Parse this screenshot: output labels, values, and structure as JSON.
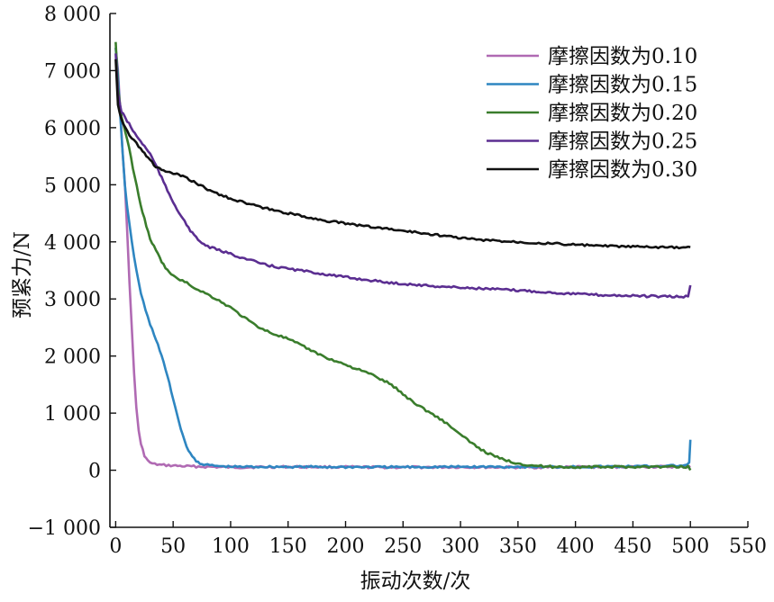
{
  "chart_data": {
    "type": "line",
    "title": "",
    "xlabel": "振动次数/次",
    "ylabel": "预紧力/N",
    "xlim": [
      -5,
      550
    ],
    "ylim": [
      -1000,
      8000
    ],
    "xticks": [
      0,
      50,
      100,
      150,
      200,
      250,
      300,
      350,
      400,
      450,
      500,
      550
    ],
    "xtick_labels": [
      "0",
      "50",
      "100",
      "150",
      "200",
      "250",
      "300",
      "350",
      "400",
      "450",
      "500",
      "550"
    ],
    "yticks": [
      -1000,
      0,
      1000,
      2000,
      3000,
      4000,
      5000,
      6000,
      7000,
      8000
    ],
    "ytick_labels": [
      "−1 000",
      "0",
      "1 000",
      "2 000",
      "3 000",
      "4 000",
      "5 000",
      "6 000",
      "7 000",
      "8 000"
    ],
    "grid": false,
    "legend_position": "top-right",
    "series": [
      {
        "name": "摩擦因数为0.10",
        "color": "#b06ab3",
        "points": [
          [
            0,
            7400
          ],
          [
            2,
            7000
          ],
          [
            4,
            6300
          ],
          [
            6,
            5600
          ],
          [
            8,
            5000
          ],
          [
            10,
            4200
          ],
          [
            12,
            3300
          ],
          [
            14,
            2500
          ],
          [
            16,
            1700
          ],
          [
            18,
            1100
          ],
          [
            20,
            700
          ],
          [
            22,
            450
          ],
          [
            25,
            260
          ],
          [
            28,
            160
          ],
          [
            32,
            110
          ],
          [
            40,
            90
          ],
          [
            50,
            80
          ],
          [
            60,
            70
          ],
          [
            80,
            60
          ],
          [
            100,
            50
          ],
          [
            150,
            60
          ],
          [
            200,
            55
          ],
          [
            250,
            50
          ],
          [
            300,
            55
          ],
          [
            350,
            50
          ],
          [
            400,
            55
          ],
          [
            450,
            60
          ],
          [
            498,
            60
          ],
          [
            500,
            80
          ]
        ]
      },
      {
        "name": "摩擦因数为0.15",
        "color": "#2e86c1",
        "points": [
          [
            0,
            7400
          ],
          [
            2,
            6900
          ],
          [
            4,
            6200
          ],
          [
            6,
            5600
          ],
          [
            8,
            5000
          ],
          [
            10,
            4600
          ],
          [
            14,
            4000
          ],
          [
            18,
            3500
          ],
          [
            22,
            3100
          ],
          [
            26,
            2800
          ],
          [
            30,
            2550
          ],
          [
            35,
            2300
          ],
          [
            40,
            2000
          ],
          [
            45,
            1650
          ],
          [
            50,
            1250
          ],
          [
            55,
            850
          ],
          [
            60,
            500
          ],
          [
            65,
            280
          ],
          [
            70,
            160
          ],
          [
            75,
            110
          ],
          [
            80,
            90
          ],
          [
            90,
            70
          ],
          [
            100,
            60
          ],
          [
            150,
            60
          ],
          [
            200,
            55
          ],
          [
            250,
            55
          ],
          [
            300,
            60
          ],
          [
            350,
            60
          ],
          [
            400,
            60
          ],
          [
            450,
            65
          ],
          [
            495,
            80
          ],
          [
            499,
            120
          ],
          [
            500,
            550
          ]
        ]
      },
      {
        "name": "摩擦因数为0.20",
        "color": "#3a7d2c",
        "points": [
          [
            0,
            7500
          ],
          [
            2,
            6700
          ],
          [
            5,
            6200
          ],
          [
            10,
            5800
          ],
          [
            15,
            5300
          ],
          [
            20,
            4800
          ],
          [
            25,
            4400
          ],
          [
            30,
            4050
          ],
          [
            35,
            3850
          ],
          [
            40,
            3650
          ],
          [
            45,
            3500
          ],
          [
            50,
            3400
          ],
          [
            60,
            3300
          ],
          [
            70,
            3180
          ],
          [
            80,
            3080
          ],
          [
            90,
            2970
          ],
          [
            100,
            2850
          ],
          [
            110,
            2700
          ],
          [
            120,
            2560
          ],
          [
            130,
            2450
          ],
          [
            140,
            2370
          ],
          [
            150,
            2300
          ],
          [
            160,
            2200
          ],
          [
            170,
            2100
          ],
          [
            180,
            2000
          ],
          [
            190,
            1920
          ],
          [
            200,
            1850
          ],
          [
            210,
            1770
          ],
          [
            220,
            1700
          ],
          [
            230,
            1600
          ],
          [
            240,
            1500
          ],
          [
            250,
            1330
          ],
          [
            260,
            1180
          ],
          [
            270,
            1050
          ],
          [
            280,
            930
          ],
          [
            290,
            790
          ],
          [
            300,
            620
          ],
          [
            310,
            470
          ],
          [
            320,
            340
          ],
          [
            330,
            240
          ],
          [
            340,
            170
          ],
          [
            350,
            120
          ],
          [
            360,
            90
          ],
          [
            370,
            70
          ],
          [
            380,
            60
          ],
          [
            400,
            55
          ],
          [
            450,
            60
          ],
          [
            498,
            60
          ],
          [
            500,
            0
          ]
        ]
      },
      {
        "name": "摩擦因数为0.25",
        "color": "#5b2e91",
        "points": [
          [
            0,
            7300
          ],
          [
            2,
            6600
          ],
          [
            5,
            6280
          ],
          [
            10,
            6120
          ],
          [
            15,
            5950
          ],
          [
            20,
            5800
          ],
          [
            25,
            5680
          ],
          [
            30,
            5540
          ],
          [
            35,
            5340
          ],
          [
            40,
            5120
          ],
          [
            45,
            4900
          ],
          [
            50,
            4700
          ],
          [
            55,
            4520
          ],
          [
            60,
            4350
          ],
          [
            65,
            4200
          ],
          [
            70,
            4070
          ],
          [
            75,
            3980
          ],
          [
            80,
            3920
          ],
          [
            90,
            3850
          ],
          [
            100,
            3790
          ],
          [
            110,
            3720
          ],
          [
            120,
            3660
          ],
          [
            130,
            3600
          ],
          [
            140,
            3560
          ],
          [
            150,
            3530
          ],
          [
            160,
            3500
          ],
          [
            170,
            3470
          ],
          [
            180,
            3440
          ],
          [
            190,
            3410
          ],
          [
            200,
            3380
          ],
          [
            220,
            3330
          ],
          [
            240,
            3280
          ],
          [
            260,
            3250
          ],
          [
            280,
            3220
          ],
          [
            300,
            3200
          ],
          [
            320,
            3180
          ],
          [
            340,
            3160
          ],
          [
            360,
            3140
          ],
          [
            380,
            3110
          ],
          [
            400,
            3090
          ],
          [
            420,
            3070
          ],
          [
            440,
            3060
          ],
          [
            460,
            3050
          ],
          [
            480,
            3040
          ],
          [
            498,
            3040
          ],
          [
            500,
            3250
          ]
        ]
      },
      {
        "name": "摩擦因数为0.30",
        "color": "#111111",
        "points": [
          [
            0,
            7200
          ],
          [
            2,
            6400
          ],
          [
            5,
            6150
          ],
          [
            8,
            6000
          ],
          [
            12,
            5880
          ],
          [
            16,
            5780
          ],
          [
            20,
            5680
          ],
          [
            25,
            5560
          ],
          [
            30,
            5420
          ],
          [
            35,
            5320
          ],
          [
            40,
            5260
          ],
          [
            45,
            5220
          ],
          [
            50,
            5200
          ],
          [
            55,
            5170
          ],
          [
            60,
            5130
          ],
          [
            70,
            5030
          ],
          [
            80,
            4920
          ],
          [
            90,
            4830
          ],
          [
            100,
            4760
          ],
          [
            120,
            4640
          ],
          [
            140,
            4540
          ],
          [
            160,
            4460
          ],
          [
            180,
            4380
          ],
          [
            200,
            4320
          ],
          [
            220,
            4270
          ],
          [
            240,
            4220
          ],
          [
            260,
            4170
          ],
          [
            280,
            4120
          ],
          [
            300,
            4070
          ],
          [
            320,
            4030
          ],
          [
            340,
            4010
          ],
          [
            360,
            3990
          ],
          [
            380,
            3970
          ],
          [
            400,
            3950
          ],
          [
            420,
            3930
          ],
          [
            440,
            3920
          ],
          [
            460,
            3910
          ],
          [
            480,
            3900
          ],
          [
            498,
            3900
          ],
          [
            500,
            3900
          ]
        ]
      }
    ]
  }
}
